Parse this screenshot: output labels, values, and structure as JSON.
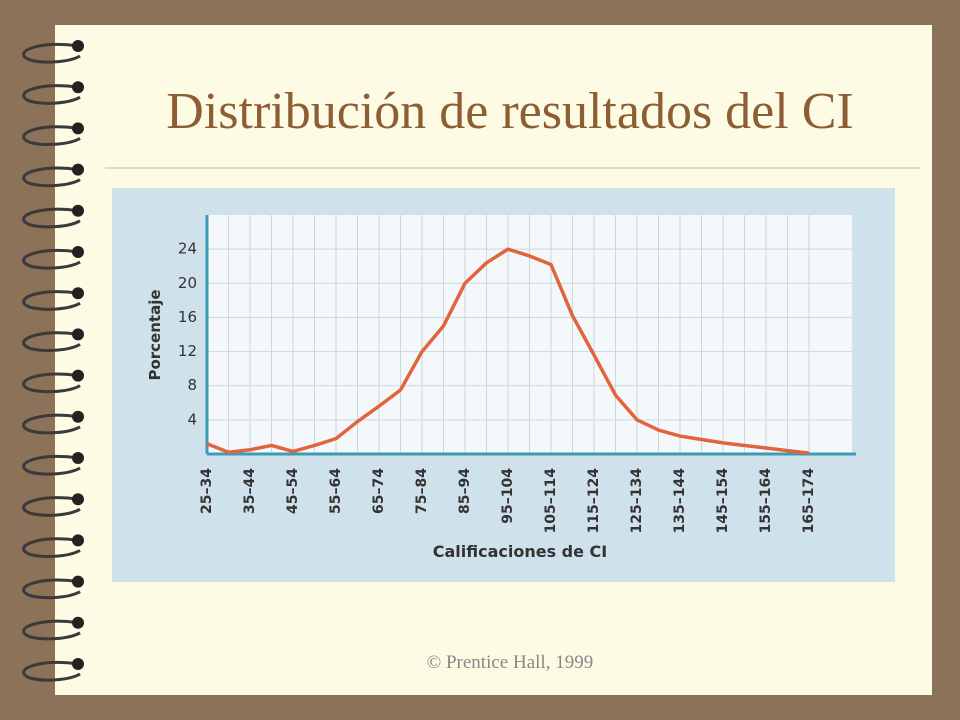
{
  "chart_data": {
    "type": "line",
    "title": "Distribución de resultados del  CI",
    "x_label": "Calificaciones de CI",
    "y_label": "Porcentaje",
    "categories": [
      "25–34",
      null,
      "35–44",
      null,
      "45–54",
      null,
      "55–64",
      null,
      "65–74",
      null,
      "75–84",
      null,
      "85–94",
      null,
      "95–104",
      null,
      "105–114",
      null,
      "115–124",
      null,
      "125–134",
      null,
      "135–144",
      null,
      "145–154",
      null,
      "155–164",
      null,
      "165–174"
    ],
    "values": [
      1.2,
      0.2,
      0.5,
      1.0,
      0.3,
      1.0,
      1.8,
      3.8,
      5.6,
      7.5,
      12,
      15,
      20,
      22.4,
      24,
      23.2,
      22.2,
      16.2,
      11.6,
      6.9,
      4,
      2.8,
      2.1,
      1.7,
      1.3,
      1.0,
      0.7,
      0.4,
      0.1
    ],
    "color": "#e2643d",
    "ylim": [
      0,
      28
    ],
    "yticks": [
      4,
      8,
      12,
      16,
      20,
      24
    ],
    "grid": true
  },
  "footer": "© Prentice Hall, 1999"
}
